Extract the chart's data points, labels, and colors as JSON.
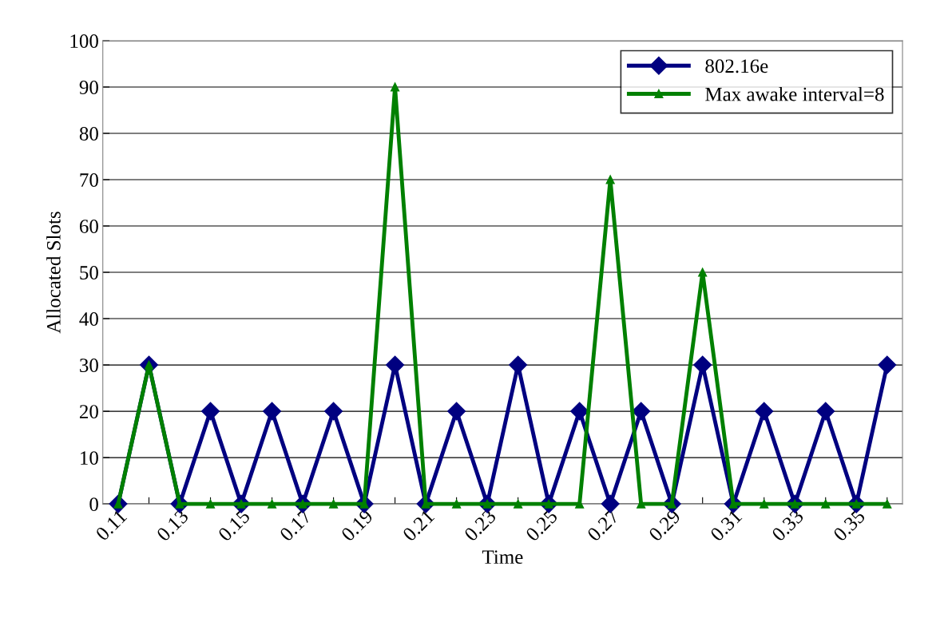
{
  "chart_data": {
    "type": "line",
    "xlabel": "Time",
    "ylabel": "Allocated Slots",
    "categories": [
      "0.11",
      null,
      "0.13",
      null,
      "0.15",
      null,
      "0.17",
      null,
      "0.19",
      null,
      "0.21",
      null,
      "0.23",
      null,
      "0.25",
      null,
      "0.27",
      null,
      "0.29",
      null,
      "0.31",
      null,
      "0.33",
      null,
      "0.35",
      null
    ],
    "series": [
      {
        "name": "802.16e",
        "color": "#000080",
        "marker": "diamond",
        "values": [
          0,
          30,
          0,
          20,
          0,
          20,
          0,
          20,
          0,
          30,
          0,
          20,
          0,
          30,
          0,
          20,
          0,
          20,
          0,
          30,
          0,
          20,
          0,
          20,
          0,
          30
        ]
      },
      {
        "name": "Max awake interval=8",
        "color": "#008000",
        "marker": "triangle",
        "values": [
          0,
          30,
          0,
          0,
          0,
          0,
          0,
          0,
          0,
          90,
          0,
          0,
          0,
          0,
          0,
          0,
          70,
          0,
          0,
          50,
          0,
          0,
          0,
          0,
          0,
          0
        ]
      }
    ],
    "ylim": [
      0,
      100
    ],
    "yticks": [
      0,
      10,
      20,
      30,
      40,
      50,
      60,
      70,
      80,
      90,
      100
    ],
    "grid": "y",
    "legend": "top right",
    "line_style": "solid"
  }
}
